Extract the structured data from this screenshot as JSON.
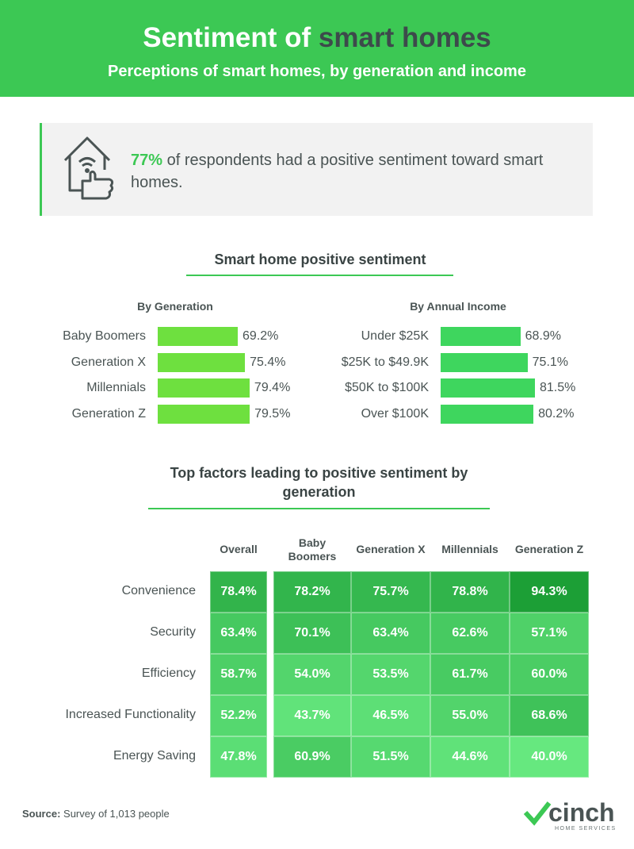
{
  "header": {
    "title_start": "Sentiment of",
    "title_highlight": "smart homes",
    "subtitle": "Perceptions of smart homes, by generation and income"
  },
  "callout": {
    "highlight": "77%",
    "text": "of respondents had a positive sentiment toward smart homes."
  },
  "section_title": "Smart home positive sentiment",
  "chart_data": [
    {
      "type": "bar",
      "orientation": "horizontal",
      "title": "By Generation",
      "categories": [
        "Baby Boomers",
        "Generation X",
        "Millennials",
        "Generation Z"
      ],
      "values": [
        69.2,
        75.4,
        79.4,
        79.5
      ],
      "value_labels": [
        "69.2%",
        "75.4%",
        "79.4%",
        "79.5%"
      ],
      "color": "#6ee03f",
      "xlim": [
        0,
        100
      ]
    },
    {
      "type": "bar",
      "orientation": "horizontal",
      "title": "By Annual Income",
      "categories": [
        "Under $25K",
        "$25K to $49.9K",
        "$50K to $100K",
        "Over $100K"
      ],
      "values": [
        68.9,
        75.1,
        81.5,
        80.2
      ],
      "value_labels": [
        "68.9%",
        "75.1%",
        "81.5%",
        "80.2%"
      ],
      "color": "#3ed65e",
      "xlim": [
        0,
        100
      ]
    },
    {
      "type": "heatmap",
      "title": "Top factors leading to positive sentiment by generation",
      "columns": [
        "Overall",
        "Baby Boomers",
        "Generation X",
        "Millennials",
        "Generation Z"
      ],
      "rows": [
        "Convenience",
        "Security",
        "Efficiency",
        "Increased Functionality",
        "Energy Saving"
      ],
      "values": [
        [
          78.4,
          78.2,
          75.7,
          78.8,
          94.3
        ],
        [
          63.4,
          70.1,
          63.4,
          62.6,
          57.1
        ],
        [
          58.7,
          54.0,
          53.5,
          61.7,
          60.0
        ],
        [
          52.2,
          43.7,
          46.5,
          55.0,
          68.6
        ],
        [
          47.8,
          60.9,
          51.5,
          44.6,
          40.0
        ]
      ],
      "value_labels": [
        [
          "78.4%",
          "78.2%",
          "75.7%",
          "78.8%",
          "94.3%"
        ],
        [
          "63.4%",
          "70.1%",
          "63.4%",
          "62.6%",
          "57.1%"
        ],
        [
          "58.7%",
          "54.0%",
          "53.5%",
          "61.7%",
          "60.0%"
        ],
        [
          "52.2%",
          "43.7%",
          "46.5%",
          "55.0%",
          "68.6%"
        ],
        [
          "47.8%",
          "60.9%",
          "51.5%",
          "44.6%",
          "40.0%"
        ]
      ],
      "colors": [
        "#66e87f",
        "#1c9f36"
      ]
    }
  ],
  "source": {
    "label": "Source:",
    "text": "Survey of 1,013 people"
  },
  "logo": {
    "name": "cinch",
    "tagline": "HOME SERVICES"
  }
}
